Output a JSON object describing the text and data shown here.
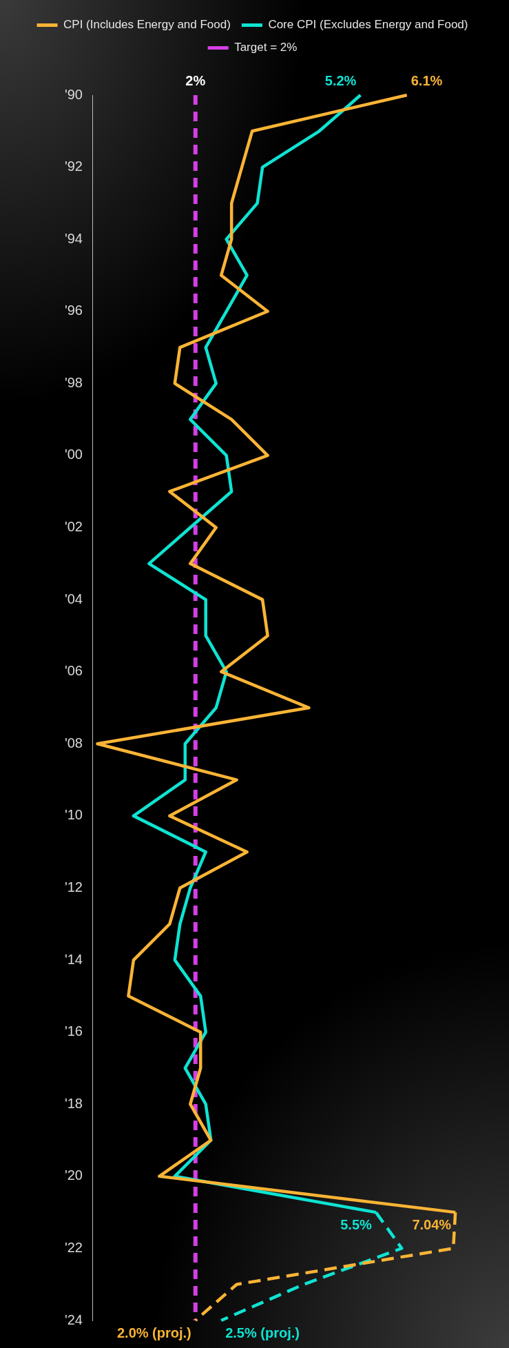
{
  "chart_data": {
    "type": "line",
    "orientation": "horizontal",
    "categories": [
      "'90",
      null,
      "'92",
      null,
      "'94",
      null,
      "'96",
      null,
      "'98",
      null,
      "'00",
      null,
      "'02",
      null,
      "'04",
      null,
      "'06",
      null,
      "'08",
      null,
      "'10",
      null,
      "'12",
      null,
      "'14",
      null,
      "'16",
      null,
      "'18",
      null,
      "'20",
      null,
      "'22",
      null,
      "'24"
    ],
    "series": [
      {
        "name": "CPI (Includes Energy and Food)",
        "color": "#fbb435",
        "values": [
          6.1,
          3.1,
          2.9,
          2.7,
          2.7,
          2.5,
          3.4,
          1.7,
          1.6,
          2.7,
          3.4,
          1.5,
          2.4,
          1.9,
          3.3,
          3.4,
          2.5,
          4.2,
          0.1,
          2.8,
          1.5,
          3.0,
          1.7,
          1.5,
          0.8,
          0.7,
          2.1,
          2.1,
          1.9,
          2.3,
          1.3,
          7.04,
          null,
          null,
          null
        ],
        "value_labels": [
          "6.1%",
          null,
          null,
          null,
          null,
          null,
          null,
          null,
          null,
          null,
          null,
          null,
          null,
          null,
          null,
          null,
          null,
          null,
          null,
          null,
          null,
          null,
          null,
          null,
          null,
          null,
          null,
          null,
          null,
          null,
          null,
          "7.04%",
          null,
          null,
          null
        ]
      },
      {
        "color": "#fbb435",
        "line_style": "dashed",
        "values": [
          null,
          null,
          null,
          null,
          null,
          null,
          null,
          null,
          null,
          null,
          null,
          null,
          null,
          null,
          null,
          null,
          null,
          null,
          null,
          null,
          null,
          null,
          null,
          null,
          null,
          null,
          null,
          null,
          null,
          null,
          null,
          7.04,
          7.0,
          2.8,
          2.0
        ],
        "value_labels": [
          null,
          null,
          null,
          null,
          null,
          null,
          null,
          null,
          null,
          null,
          null,
          null,
          null,
          null,
          null,
          null,
          null,
          null,
          null,
          null,
          null,
          null,
          null,
          null,
          null,
          null,
          null,
          null,
          null,
          null,
          null,
          null,
          null,
          null,
          "2.0% (proj.)"
        ]
      },
      {
        "name": "Core CPI (Excludes Energy and Food)",
        "color": "#0fe3d3",
        "values": [
          5.2,
          4.4,
          3.3,
          3.2,
          2.6,
          3.0,
          2.6,
          2.2,
          2.4,
          1.9,
          2.6,
          2.7,
          1.9,
          1.1,
          2.2,
          2.2,
          2.6,
          2.4,
          1.8,
          1.8,
          0.8,
          2.2,
          1.9,
          1.7,
          1.6,
          2.1,
          2.2,
          1.8,
          2.2,
          2.3,
          1.6,
          5.5,
          null,
          null,
          null
        ],
        "value_labels": [
          "5.2%",
          null,
          null,
          null,
          null,
          null,
          null,
          null,
          null,
          null,
          null,
          null,
          null,
          null,
          null,
          null,
          null,
          null,
          null,
          null,
          null,
          null,
          null,
          null,
          null,
          null,
          null,
          null,
          null,
          null,
          null,
          "5.5%",
          null,
          null,
          null
        ]
      },
      {
        "color": "#0fe3d3",
        "line_style": "dashed",
        "values": [
          null,
          null,
          null,
          null,
          null,
          null,
          null,
          null,
          null,
          null,
          null,
          null,
          null,
          null,
          null,
          null,
          null,
          null,
          null,
          null,
          null,
          null,
          null,
          null,
          null,
          null,
          null,
          null,
          null,
          null,
          null,
          5.5,
          6.0,
          4.1,
          2.5
        ],
        "value_labels": [
          null,
          null,
          null,
          null,
          null,
          null,
          null,
          null,
          null,
          null,
          null,
          null,
          null,
          null,
          null,
          null,
          null,
          null,
          null,
          null,
          null,
          null,
          null,
          null,
          null,
          null,
          null,
          null,
          null,
          null,
          null,
          null,
          null,
          null,
          "2.5% (proj.)"
        ]
      }
    ],
    "ref_lines": [
      {
        "axis": "x",
        "value": 2,
        "label": "Target = 2%",
        "color": "#d43fe6",
        "line_style": "dashed"
      }
    ],
    "annotations": [
      "2%"
    ],
    "legend": "top",
    "marker": "none",
    "grid": false
  }
}
